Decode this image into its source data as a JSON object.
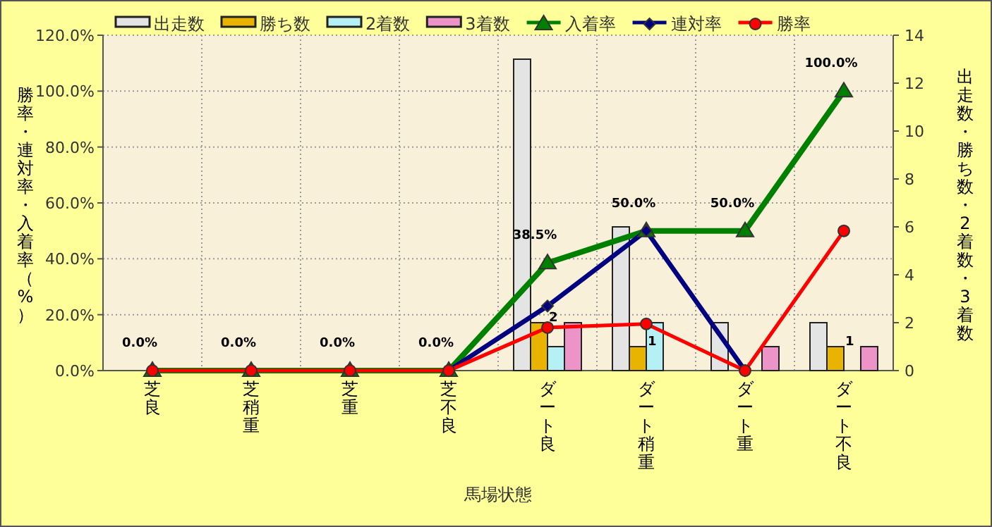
{
  "chart_data": {
    "type": "bar",
    "xlabel": "馬場状態",
    "ylabel": "勝率・連対率・入着率（%）",
    "y2label": "出走数・勝ち数・2着数・3着数",
    "categories": [
      "芝良",
      "芝稍重",
      "芝重",
      "芝不良",
      "ダート良",
      "ダート稍重",
      "ダート重",
      "ダート不良"
    ],
    "series": [
      {
        "name": "出走数",
        "axis": "y2",
        "color": "#e4e4e4",
        "values": [
          0,
          0,
          0,
          0,
          13,
          6,
          2,
          2
        ]
      },
      {
        "name": "勝ち数",
        "axis": "y2",
        "color": "#e8b400",
        "values": [
          0,
          0,
          0,
          0,
          2,
          1,
          0,
          1
        ],
        "value_labels": [
          null,
          null,
          null,
          null,
          "2",
          "1",
          null,
          "1"
        ]
      },
      {
        "name": "2着数",
        "axis": "y2",
        "color": "#b4f0f4",
        "values": [
          0,
          0,
          0,
          0,
          1,
          2,
          0,
          0
        ]
      },
      {
        "name": "3着数",
        "axis": "y2",
        "color": "#ec94c8",
        "values": [
          0,
          0,
          0,
          0,
          2,
          0,
          1,
          1
        ]
      },
      {
        "name": "入着率",
        "type": "line",
        "color": "#008000",
        "marker": "triangle",
        "values": [
          0,
          0,
          0,
          0,
          38.5,
          50,
          50,
          100
        ],
        "value_labels": [
          "0.0%",
          "0.0%",
          "0.0%",
          "0.0%",
          "38.5%",
          "50.0%",
          "50.0%",
          "100.0%"
        ]
      },
      {
        "name": "連対率",
        "type": "line",
        "color": "#000080",
        "marker": "diamond",
        "values": [
          null,
          null,
          null,
          0,
          23.1,
          50,
          0,
          null
        ]
      },
      {
        "name": "勝率",
        "type": "line",
        "color": "#ff0000",
        "marker": "circle",
        "values": [
          0,
          0,
          0,
          0,
          15.4,
          16.7,
          0,
          50
        ]
      }
    ],
    "ylim": [
      0,
      120
    ],
    "yticks": [
      {
        "value": 0,
        "label": "0.0%"
      },
      {
        "value": 20,
        "label": "20.0%"
      },
      {
        "value": 40,
        "label": "40.0%"
      },
      {
        "value": 60,
        "label": "60.0%"
      },
      {
        "value": 80,
        "label": "80.0%"
      },
      {
        "value": 100,
        "label": "100.0%"
      },
      {
        "value": 120,
        "label": "120.0%"
      }
    ],
    "y2lim": [
      0,
      14
    ],
    "y2ticks": [
      0,
      2,
      4,
      6,
      8,
      10,
      12,
      14
    ],
    "grid": true,
    "legend": "top"
  }
}
